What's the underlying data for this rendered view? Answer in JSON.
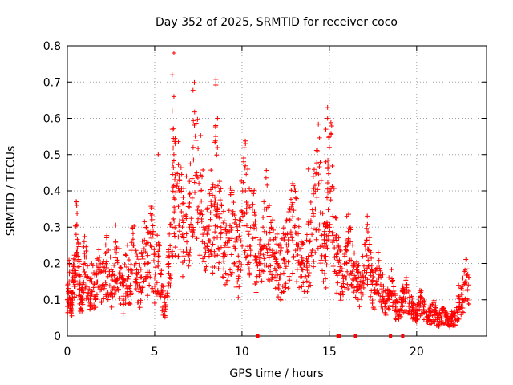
{
  "chart_data": {
    "type": "scatter",
    "title": "Day 352 of 2025, SRMTID for receiver coco",
    "xlabel": "GPS time / hours",
    "ylabel": "SRMTID / TECUs",
    "xlim": [
      0,
      24
    ],
    "ylim": [
      0,
      0.8
    ],
    "xticks": [
      0,
      5,
      10,
      15,
      20
    ],
    "yticks": [
      0,
      0.1,
      0.2,
      0.3,
      0.4,
      0.5,
      0.6,
      0.7,
      0.8
    ],
    "xtick_labels": [
      "0",
      "5",
      "10",
      "15",
      "20"
    ],
    "ytick_labels": [
      "0",
      "0.1",
      "0.2",
      "0.3",
      "0.4",
      "0.5",
      "0.6",
      "0.7",
      "0.8"
    ],
    "grid": true,
    "marker": "plus",
    "color": "#ff0000",
    "series": [
      {
        "name": "SRMTID",
        "x": [
          0.0,
          0.1,
          0.2,
          0.3,
          0.4,
          0.5,
          0.6,
          0.7,
          0.8,
          0.9,
          1.0,
          1.2,
          1.4,
          1.6,
          1.8,
          2.0,
          2.2,
          2.4,
          2.6,
          2.8,
          3.0,
          3.2,
          3.4,
          3.6,
          3.8,
          4.0,
          4.2,
          4.4,
          4.6,
          4.8,
          5.0,
          5.2,
          5.4,
          5.6,
          5.8,
          6.0,
          6.1,
          6.2,
          6.4,
          6.6,
          6.8,
          7.0,
          7.2,
          7.4,
          7.6,
          7.8,
          8.0,
          8.2,
          8.4,
          8.5,
          8.6,
          8.8,
          9.0,
          9.2,
          9.4,
          9.6,
          9.8,
          10.0,
          10.2,
          10.4,
          10.6,
          10.8,
          11.0,
          11.2,
          11.4,
          11.6,
          11.8,
          12.0,
          12.2,
          12.4,
          12.6,
          12.8,
          13.0,
          13.2,
          13.4,
          13.6,
          13.8,
          14.0,
          14.2,
          14.4,
          14.6,
          14.8,
          14.9,
          15.0,
          15.2,
          15.4,
          15.6,
          15.8,
          16.0,
          16.2,
          16.4,
          16.6,
          16.8,
          17.0,
          17.2,
          17.4,
          17.6,
          17.8,
          18.0,
          18.2,
          18.4,
          18.6,
          18.8,
          19.0,
          19.2,
          19.4,
          19.6,
          19.8,
          20.0,
          20.2,
          20.4,
          20.6,
          20.8,
          21.0,
          21.2,
          21.4,
          21.6,
          21.8,
          22.0,
          22.2,
          22.4,
          22.6,
          22.8
        ],
        "y": [
          0.1,
          0.15,
          0.07,
          0.12,
          0.18,
          0.28,
          0.22,
          0.13,
          0.1,
          0.16,
          0.2,
          0.12,
          0.15,
          0.11,
          0.19,
          0.14,
          0.2,
          0.17,
          0.13,
          0.23,
          0.16,
          0.11,
          0.19,
          0.14,
          0.25,
          0.17,
          0.13,
          0.24,
          0.2,
          0.27,
          0.16,
          0.22,
          0.12,
          0.08,
          0.2,
          0.3,
          0.5,
          0.35,
          0.4,
          0.28,
          0.33,
          0.3,
          0.52,
          0.45,
          0.4,
          0.3,
          0.25,
          0.34,
          0.27,
          0.58,
          0.35,
          0.3,
          0.22,
          0.27,
          0.3,
          0.24,
          0.19,
          0.34,
          0.4,
          0.28,
          0.35,
          0.22,
          0.18,
          0.3,
          0.35,
          0.24,
          0.22,
          0.2,
          0.17,
          0.21,
          0.23,
          0.28,
          0.3,
          0.24,
          0.2,
          0.16,
          0.22,
          0.28,
          0.35,
          0.42,
          0.25,
          0.22,
          0.3,
          0.55,
          0.33,
          0.22,
          0.18,
          0.15,
          0.2,
          0.26,
          0.19,
          0.15,
          0.12,
          0.18,
          0.24,
          0.15,
          0.12,
          0.17,
          0.13,
          0.09,
          0.11,
          0.15,
          0.08,
          0.07,
          0.1,
          0.12,
          0.09,
          0.07,
          0.06,
          0.09,
          0.08,
          0.05,
          0.06,
          0.07,
          0.04,
          0.05,
          0.06,
          0.04,
          0.05,
          0.05,
          0.08,
          0.1,
          0.15
        ]
      }
    ],
    "peaks": [
      {
        "x": 6.1,
        "y": 0.78
      },
      {
        "x": 6.0,
        "y": 0.72
      },
      {
        "x": 6.1,
        "y": 0.66
      },
      {
        "x": 6.0,
        "y": 0.62
      },
      {
        "x": 6.0,
        "y": 0.57
      },
      {
        "x": 5.2,
        "y": 0.5
      },
      {
        "x": 8.6,
        "y": 0.6
      },
      {
        "x": 8.5,
        "y": 0.55
      },
      {
        "x": 10.2,
        "y": 0.53
      },
      {
        "x": 10.1,
        "y": 0.48
      },
      {
        "x": 14.9,
        "y": 0.63
      },
      {
        "x": 14.9,
        "y": 0.6
      },
      {
        "x": 14.8,
        "y": 0.57
      },
      {
        "x": 15.0,
        "y": 0.52
      },
      {
        "x": 14.8,
        "y": 0.48
      },
      {
        "x": 13.8,
        "y": 0.46
      },
      {
        "x": 16.0,
        "y": 0.33
      },
      {
        "x": 16.2,
        "y": 0.3
      },
      {
        "x": 22.6,
        "y": 0.16
      },
      {
        "x": 22.4,
        "y": 0.14
      }
    ],
    "baseline_markers_x": [
      10.9,
      15.5,
      15.6,
      16.5,
      18.5,
      19.2
    ]
  }
}
